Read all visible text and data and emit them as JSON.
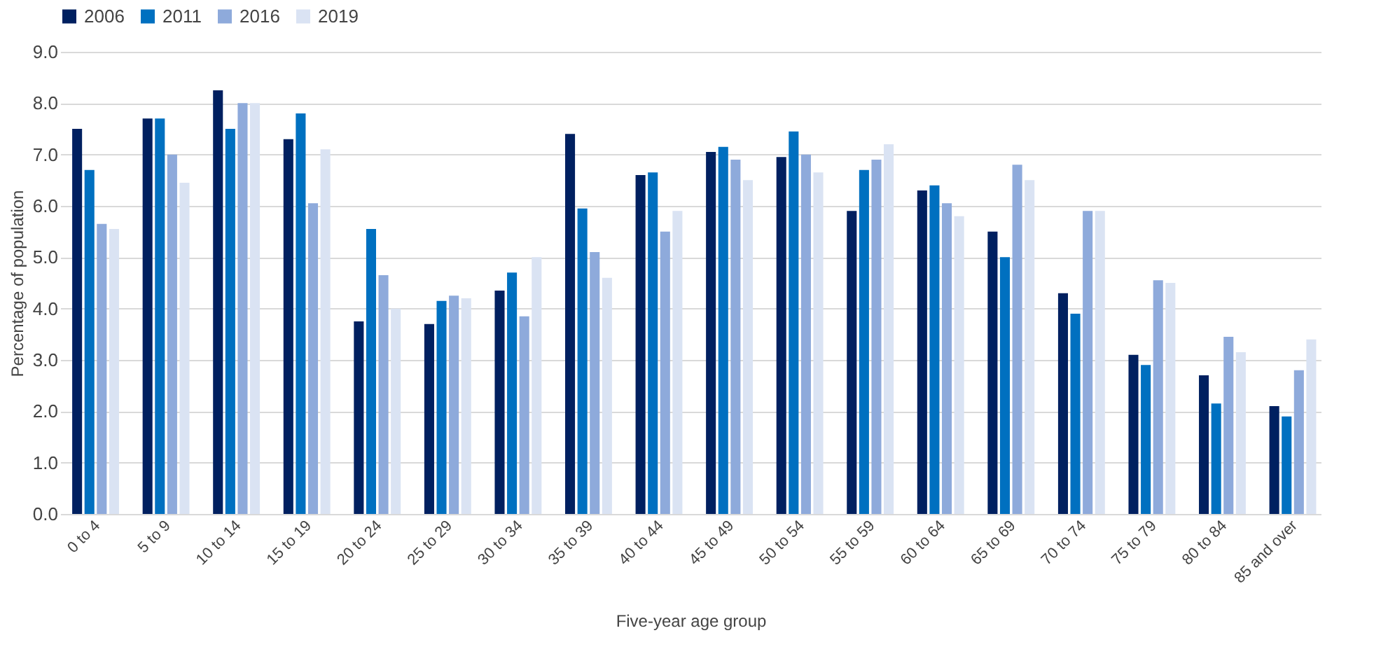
{
  "chart_data": {
    "type": "bar",
    "xlabel": "Five-year age group",
    "ylabel": "Percentage of population",
    "categories": [
      "0 to 4",
      "5 to 9",
      "10 to 14",
      "15 to 19",
      "20 to 24",
      "25 to 29",
      "30 to 34",
      "35 to 39",
      "40 to 44",
      "45 to 49",
      "50 to 54",
      "55 to 59",
      "60 to 64",
      "65 to 69",
      "70 to 74",
      "75 to 79",
      "80 to 84",
      "85 and over"
    ],
    "series": [
      {
        "name": "2006",
        "color": "#002060",
        "values": [
          7.5,
          7.7,
          8.25,
          7.3,
          3.75,
          3.7,
          4.35,
          7.4,
          6.6,
          7.05,
          6.95,
          5.9,
          6.3,
          5.5,
          4.3,
          3.1,
          2.7,
          2.1
        ]
      },
      {
        "name": "2011",
        "color": "#0070c0",
        "values": [
          6.7,
          7.7,
          7.5,
          7.8,
          5.55,
          4.15,
          4.7,
          5.95,
          6.65,
          7.15,
          7.45,
          6.7,
          6.4,
          5.0,
          3.9,
          2.9,
          2.15,
          1.9
        ]
      },
      {
        "name": "2016",
        "color": "#8eaadb",
        "values": [
          5.65,
          7.0,
          8.0,
          6.05,
          4.65,
          4.25,
          3.85,
          5.1,
          5.5,
          6.9,
          7.0,
          6.9,
          6.05,
          6.8,
          5.9,
          4.55,
          3.45,
          2.8
        ]
      },
      {
        "name": "2019",
        "color": "#dae3f3",
        "values": [
          5.55,
          6.45,
          8.0,
          7.1,
          4.0,
          4.2,
          5.0,
          4.6,
          5.9,
          6.5,
          6.65,
          7.2,
          5.8,
          6.5,
          5.9,
          4.5,
          3.15,
          3.4
        ]
      }
    ],
    "ylim": [
      0,
      9
    ],
    "yticks": [
      {
        "value": 0,
        "label": "0.0"
      },
      {
        "value": 1,
        "label": "1.0"
      },
      {
        "value": 2,
        "label": "2.0"
      },
      {
        "value": 3,
        "label": "3.0"
      },
      {
        "value": 4,
        "label": "4.0"
      },
      {
        "value": 5,
        "label": "5.0"
      },
      {
        "value": 6,
        "label": "6.0"
      },
      {
        "value": 7,
        "label": "7.0"
      },
      {
        "value": 8,
        "label": "8.0"
      },
      {
        "value": 9,
        "label": "9.0"
      }
    ],
    "grid": "y",
    "legend": "top"
  }
}
